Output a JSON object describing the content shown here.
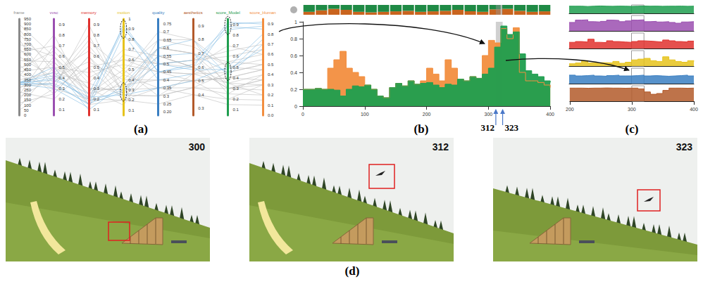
{
  "chart_data": [
    {
      "label": "(a)",
      "type": "parallel",
      "grid": false,
      "axes": [
        {
          "name": "frame",
          "color": "#8a8a8a",
          "ylim": [
            0,
            950
          ],
          "yticks": [
            0,
            50,
            100,
            150,
            200,
            250,
            300,
            350,
            400,
            450,
            500,
            550,
            600,
            650,
            700,
            750,
            800,
            850,
            900,
            950
          ]
        },
        {
          "name": "vvsc",
          "color": "#9b4fb0",
          "ylim": [
            0.05,
            0.95
          ],
          "yticks": [
            0.1,
            0.2,
            0.3,
            0.4,
            0.5,
            0.6,
            0.7,
            0.8,
            0.9
          ]
        },
        {
          "name": "memory",
          "color": "#e0312e",
          "ylim": [
            0.05,
            0.95
          ],
          "yticks": [
            0.1,
            0.2,
            0.3,
            0.4,
            0.5,
            0.6,
            0.7,
            0.8,
            0.9
          ]
        },
        {
          "name": "motion",
          "color": "#e6c31c",
          "ylim": [
            0.05,
            1
          ],
          "yticks": [
            0.1,
            0.2,
            0.3,
            0.4,
            0.5,
            0.6,
            0.7,
            0.8,
            0.9,
            1
          ]
        },
        {
          "name": "quality",
          "color": "#3a7fc2",
          "ylim": [
            0.18,
            0.78
          ],
          "yticks": [
            {
              "value": 0.2,
              "label": "0.20"
            },
            0.25,
            0.3,
            0.35,
            0.4,
            0.45,
            0.5,
            0.55,
            0.6,
            0.65,
            0.7,
            0.75
          ]
        },
        {
          "name": "aesthetics",
          "color": "#b35a2a",
          "ylim": [
            0.25,
            0.95
          ],
          "yticks": [
            0.3,
            0.4,
            0.5,
            0.6,
            0.7,
            0.8,
            0.9
          ]
        },
        {
          "name": "score_Model",
          "color": "#1f9e4f",
          "ylim": [
            0.05,
            0.95
          ],
          "yticks": [
            0.1,
            0.2,
            0.3,
            0.4,
            0.5,
            0.6,
            0.7,
            0.8,
            0.9
          ]
        },
        {
          "name": "score_Human",
          "color": "#f28e3f",
          "ylim": [
            0,
            0.95
          ],
          "yticks": [
            {
              "value": 0,
              "label": "0.0"
            },
            0.1,
            0.2,
            0.3,
            0.4,
            0.5,
            0.6,
            0.7,
            0.8,
            0.9
          ]
        }
      ],
      "series": [
        {
          "color": "#bdbdbd",
          "values": [
            [
              50,
              0.3,
              0.2,
              0.2,
              0.45,
              0.5,
              0.2,
              0.3
            ],
            [
              80,
              0.5,
              0.3,
              0.15,
              0.55,
              0.6,
              0.3,
              0.25
            ],
            [
              120,
              0.25,
              0.6,
              0.3,
              0.35,
              0.45,
              0.25,
              0.4
            ],
            [
              150,
              0.6,
              0.15,
              0.4,
              0.6,
              0.7,
              0.55,
              0.5
            ],
            [
              180,
              0.4,
              0.8,
              0.25,
              0.3,
              0.55,
              0.35,
              0.2
            ],
            [
              200,
              0.7,
              0.4,
              0.6,
              0.5,
              0.65,
              0.6,
              0.65
            ],
            [
              230,
              0.2,
              0.5,
              0.2,
              0.25,
              0.4,
              0.15,
              0.1
            ],
            [
              260,
              0.55,
              0.25,
              0.5,
              0.65,
              0.75,
              0.5,
              0.55
            ],
            [
              280,
              0.35,
              0.7,
              0.35,
              0.4,
              0.5,
              0.4,
              0.35
            ],
            [
              350,
              0.45,
              0.35,
              0.7,
              0.55,
              0.6,
              0.7,
              0.6
            ],
            [
              380,
              0.8,
              0.2,
              0.45,
              0.7,
              0.8,
              0.5,
              0.45
            ],
            [
              400,
              0.3,
              0.9,
              0.25,
              0.3,
              0.45,
              0.3,
              0.3
            ],
            [
              430,
              0.5,
              0.45,
              0.55,
              0.45,
              0.55,
              0.45,
              0.5
            ],
            [
              460,
              0.65,
              0.3,
              0.3,
              0.6,
              0.7,
              0.35,
              0.4
            ],
            [
              500,
              0.25,
              0.6,
              0.2,
              0.35,
              0.4,
              0.2,
              0.15
            ],
            [
              540,
              0.55,
              0.2,
              0.65,
              0.5,
              0.65,
              0.65,
              0.7
            ],
            [
              580,
              0.4,
              0.55,
              0.4,
              0.4,
              0.5,
              0.4,
              0.45
            ],
            [
              620,
              0.7,
              0.35,
              0.25,
              0.65,
              0.8,
              0.3,
              0.35
            ],
            [
              660,
              0.35,
              0.75,
              0.5,
              0.3,
              0.45,
              0.45,
              0.5
            ],
            [
              700,
              0.6,
              0.25,
              0.35,
              0.55,
              0.6,
              0.35,
              0.3
            ],
            [
              750,
              0.3,
              0.5,
              0.6,
              0.45,
              0.55,
              0.55,
              0.6
            ],
            [
              800,
              0.5,
              0.15,
              0.2,
              0.6,
              0.7,
              0.25,
              0.2
            ],
            [
              850,
              0.45,
              0.65,
              0.45,
              0.35,
              0.5,
              0.4,
              0.45
            ],
            [
              900,
              0.6,
              0.3,
              0.3,
              0.5,
              0.6,
              0.3,
              0.35
            ]
          ]
        },
        {
          "color": "#7fb9e3",
          "values": [
            [
              300,
              0.35,
              0.15,
              0.95,
              0.45,
              0.6,
              0.92,
              0.9
            ],
            [
              305,
              0.4,
              0.2,
              0.9,
              0.5,
              0.65,
              0.88,
              0.85
            ],
            [
              310,
              0.3,
              0.12,
              0.85,
              0.4,
              0.55,
              0.9,
              0.92
            ],
            [
              315,
              0.45,
              0.18,
              0.3,
              0.55,
              0.7,
              0.45,
              0.75
            ],
            [
              318,
              0.38,
              0.22,
              0.25,
              0.35,
              0.5,
              0.5,
              0.8
            ],
            [
              320,
              0.5,
              0.1,
              0.35,
              0.6,
              0.8,
              0.42,
              0.7
            ],
            [
              325,
              0.42,
              0.25,
              0.92,
              0.45,
              0.62,
              0.85,
              0.88
            ],
            [
              330,
              0.33,
              0.16,
              0.28,
              0.5,
              0.58,
              0.48,
              0.65
            ]
          ]
        }
      ]
    },
    {
      "label": "(b)",
      "type": "area",
      "grid": false,
      "x": [
        0,
        10,
        20,
        30,
        40,
        50,
        60,
        70,
        80,
        90,
        100,
        110,
        120,
        130,
        140,
        150,
        160,
        170,
        180,
        190,
        200,
        210,
        220,
        230,
        240,
        250,
        260,
        270,
        280,
        290,
        300,
        310,
        320,
        330,
        340,
        350,
        360,
        370,
        380,
        390,
        400
      ],
      "xlim": [
        0,
        400
      ],
      "xticks": [
        0,
        100,
        200,
        300,
        400
      ],
      "ylim": [
        0,
        1
      ],
      "yticks": [
        0,
        0.2,
        0.4,
        0.6,
        0.8,
        1
      ],
      "series": [
        {
          "color": "#f28e3f",
          "values": [
            0.2,
            0.2,
            0.21,
            0.2,
            0.45,
            0.55,
            0.65,
            0.45,
            0.4,
            0.35,
            0.25,
            0.2,
            0.12,
            0.1,
            0.22,
            0.27,
            0.24,
            0.3,
            0.26,
            0.3,
            0.45,
            0.38,
            0.3,
            0.55,
            0.45,
            0.32,
            0.3,
            0.35,
            0.33,
            0.6,
            0.78,
            0.75,
            0.92,
            0.8,
            0.93,
            0.4,
            0.3,
            0.3,
            0.28,
            0.25,
            0.22
          ]
        },
        {
          "color": "#1f9e4f",
          "values": [
            0.2,
            0.2,
            0.21,
            0.2,
            0.2,
            0.19,
            0.12,
            0.2,
            0.24,
            0.23,
            0.25,
            0.2,
            0.12,
            0.1,
            0.22,
            0.27,
            0.24,
            0.3,
            0.26,
            0.27,
            0.28,
            0.25,
            0.22,
            0.26,
            0.25,
            0.32,
            0.3,
            0.35,
            0.33,
            0.38,
            0.45,
            0.7,
            0.95,
            0.85,
            0.88,
            0.62,
            0.42,
            0.38,
            0.35,
            0.3,
            0.28
          ]
        }
      ],
      "highlight": [
        312,
        323
      ],
      "overview": {
        "type": "bar",
        "stacked": true,
        "tick_labels": false,
        "ylim": [
          0,
          1
        ],
        "series": [
          {
            "color": "#c9641e",
            "values": [
              0.3,
              0.45,
              0.6,
              0.5,
              0.3,
              0.25,
              0.3,
              0.35,
              0.4,
              0.3,
              0.35,
              0.4,
              0.5,
              0.35,
              0.3,
              0.55,
              0.6,
              0.4,
              0.3,
              0.35
            ]
          },
          {
            "color": "#1f8a45",
            "values": [
              0.7,
              0.55,
              0.4,
              0.5,
              0.7,
              0.75,
              0.7,
              0.65,
              0.6,
              0.7,
              0.65,
              0.6,
              0.5,
              0.65,
              0.7,
              0.45,
              0.4,
              0.6,
              0.7,
              0.65
            ]
          }
        ]
      }
    },
    {
      "label": "(c)",
      "type": "area",
      "grid": false,
      "tick_labels": "x",
      "x": [
        200,
        210,
        220,
        230,
        240,
        250,
        260,
        270,
        280,
        290,
        300,
        310,
        320,
        330,
        340,
        350,
        360,
        370,
        380,
        390,
        400
      ],
      "xlim": [
        200,
        400
      ],
      "xticks": [
        200,
        300,
        400
      ],
      "ylim": [
        0,
        1
      ],
      "highlight": [
        300,
        320
      ],
      "series": [
        {
          "color": "#1f9e4f",
          "values": [
            0.85,
            0.85,
            0.82,
            0.85,
            0.88,
            0.85,
            0.84,
            0.86,
            0.85,
            0.83,
            0.85,
            0.87,
            0.85,
            0.86,
            0.84,
            0.85,
            0.85,
            0.86,
            0.84,
            0.85,
            0.85
          ]
        },
        {
          "color": "#9b4fb0",
          "values": [
            0.55,
            0.7,
            0.72,
            0.6,
            0.58,
            0.62,
            0.7,
            0.68,
            0.6,
            0.65,
            0.7,
            0.72,
            0.6,
            0.62,
            0.58,
            0.6,
            0.55,
            0.5,
            0.58,
            0.6,
            0.62
          ]
        },
        {
          "color": "#e0312e",
          "values": [
            0.4,
            0.45,
            0.42,
            0.6,
            0.4,
            0.38,
            0.5,
            0.45,
            0.42,
            0.4,
            0.45,
            0.5,
            0.48,
            0.45,
            0.42,
            0.55,
            0.5,
            0.45,
            0.42,
            0.48,
            0.45
          ]
        },
        {
          "color": "#e6c31c",
          "values": [
            0.15,
            0.2,
            0.35,
            0.2,
            0.18,
            0.22,
            0.2,
            0.3,
            0.18,
            0.25,
            0.4,
            0.45,
            0.5,
            0.35,
            0.3,
            0.6,
            0.4,
            0.3,
            0.25,
            0.35,
            0.3
          ]
        },
        {
          "color": "#3a7fc2",
          "values": [
            0.55,
            0.5,
            0.52,
            0.55,
            0.5,
            0.48,
            0.52,
            0.55,
            0.5,
            0.5,
            0.52,
            0.55,
            0.5,
            0.52,
            0.5,
            0.48,
            0.5,
            0.52,
            0.55,
            0.5,
            0.5
          ]
        },
        {
          "color": "#b35a2a",
          "values": [
            0.85,
            0.85,
            0.84,
            0.85,
            0.85,
            0.86,
            0.85,
            0.85,
            0.84,
            0.85,
            0.85,
            0.8,
            0.6,
            0.45,
            0.5,
            0.7,
            0.85,
            0.85,
            0.84,
            0.85,
            0.85
          ]
        }
      ]
    },
    {
      "label": "(d)",
      "type": "image",
      "frames": [
        "300",
        "312",
        "323"
      ]
    }
  ]
}
